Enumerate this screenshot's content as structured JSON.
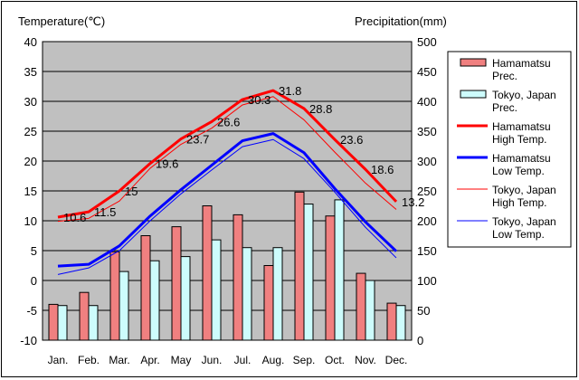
{
  "chart_data": {
    "type": "bar+line",
    "left_axis_title": "Temperature(℃)",
    "right_axis_title": "Precipitation(mm)",
    "categories": [
      "Jan.",
      "Feb.",
      "Mar.",
      "Apr.",
      "May",
      "Jun.",
      "Jul.",
      "Aug.",
      "Sep.",
      "Oct.",
      "Nov.",
      "Dec."
    ],
    "left_axis": {
      "min": -10,
      "max": 40,
      "step": 5,
      "ticks": [
        "-10",
        "-5",
        "0",
        "5",
        "10",
        "15",
        "20",
        "25",
        "30",
        "35",
        "40"
      ]
    },
    "right_axis": {
      "min": 0,
      "max": 500,
      "step": 50,
      "ticks": [
        "0",
        "50",
        "100",
        "150",
        "200",
        "250",
        "300",
        "350",
        "400",
        "450",
        "500"
      ]
    },
    "bars": [
      {
        "name": "Hamamatsu Prec.",
        "label_lines": [
          "Hamamatsu",
          "Prec."
        ],
        "color": "#f08080",
        "values": [
          60,
          80,
          148,
          175,
          190,
          225,
          210,
          125,
          248,
          208,
          112,
          62
        ]
      },
      {
        "name": "Tokyo, Japan Prec.",
        "label_lines": [
          "Tokyo, Japan",
          "Prec."
        ],
        "color": "#cdfcfc",
        "values": [
          58,
          58,
          115,
          133,
          140,
          168,
          155,
          155,
          228,
          235,
          100,
          58
        ]
      }
    ],
    "lines": [
      {
        "name": "Hamamatsu High Temp.",
        "label_lines": [
          "Hamamatsu",
          "High Temp."
        ],
        "color": "#ff0000",
        "width": 3,
        "values": [
          10.6,
          11.5,
          15,
          19.6,
          23.7,
          26.6,
          30.3,
          31.8,
          28.8,
          23.6,
          18.6,
          13.2
        ]
      },
      {
        "name": "Hamamatsu Low Temp.",
        "label_lines": [
          "Hamamatsu",
          "Low Temp."
        ],
        "color": "#0000ff",
        "width": 3,
        "values": [
          2.4,
          2.7,
          5.8,
          10.8,
          15.2,
          19.3,
          23.4,
          24.6,
          21.4,
          15.4,
          9.8,
          4.9
        ]
      },
      {
        "name": "Tokyo, Japan High Temp.",
        "label_lines": [
          "Tokyo, Japan",
          "High Temp."
        ],
        "color": "#ff0000",
        "width": 1,
        "values": [
          9.9,
          10.4,
          13.3,
          18.8,
          22.8,
          25.5,
          29.4,
          30.8,
          26.9,
          21.5,
          16.3,
          11.9
        ]
      },
      {
        "name": "Tokyo, Japan Low Temp.",
        "label_lines": [
          "Tokyo, Japan",
          "Low Temp."
        ],
        "color": "#0000ff",
        "width": 1,
        "values": [
          1.0,
          2.1,
          5.0,
          10.0,
          14.5,
          18.5,
          22.4,
          23.6,
          20.4,
          14.8,
          8.9,
          3.8
        ]
      }
    ],
    "data_labels": {
      "series": "Hamamatsu High Temp.",
      "texts": [
        "10.6",
        "11.5",
        "15",
        "19.6",
        "23.7",
        "26.6",
        "30.3",
        "31.8",
        "28.8",
        "23.6",
        "18.6",
        "13.2"
      ]
    }
  }
}
